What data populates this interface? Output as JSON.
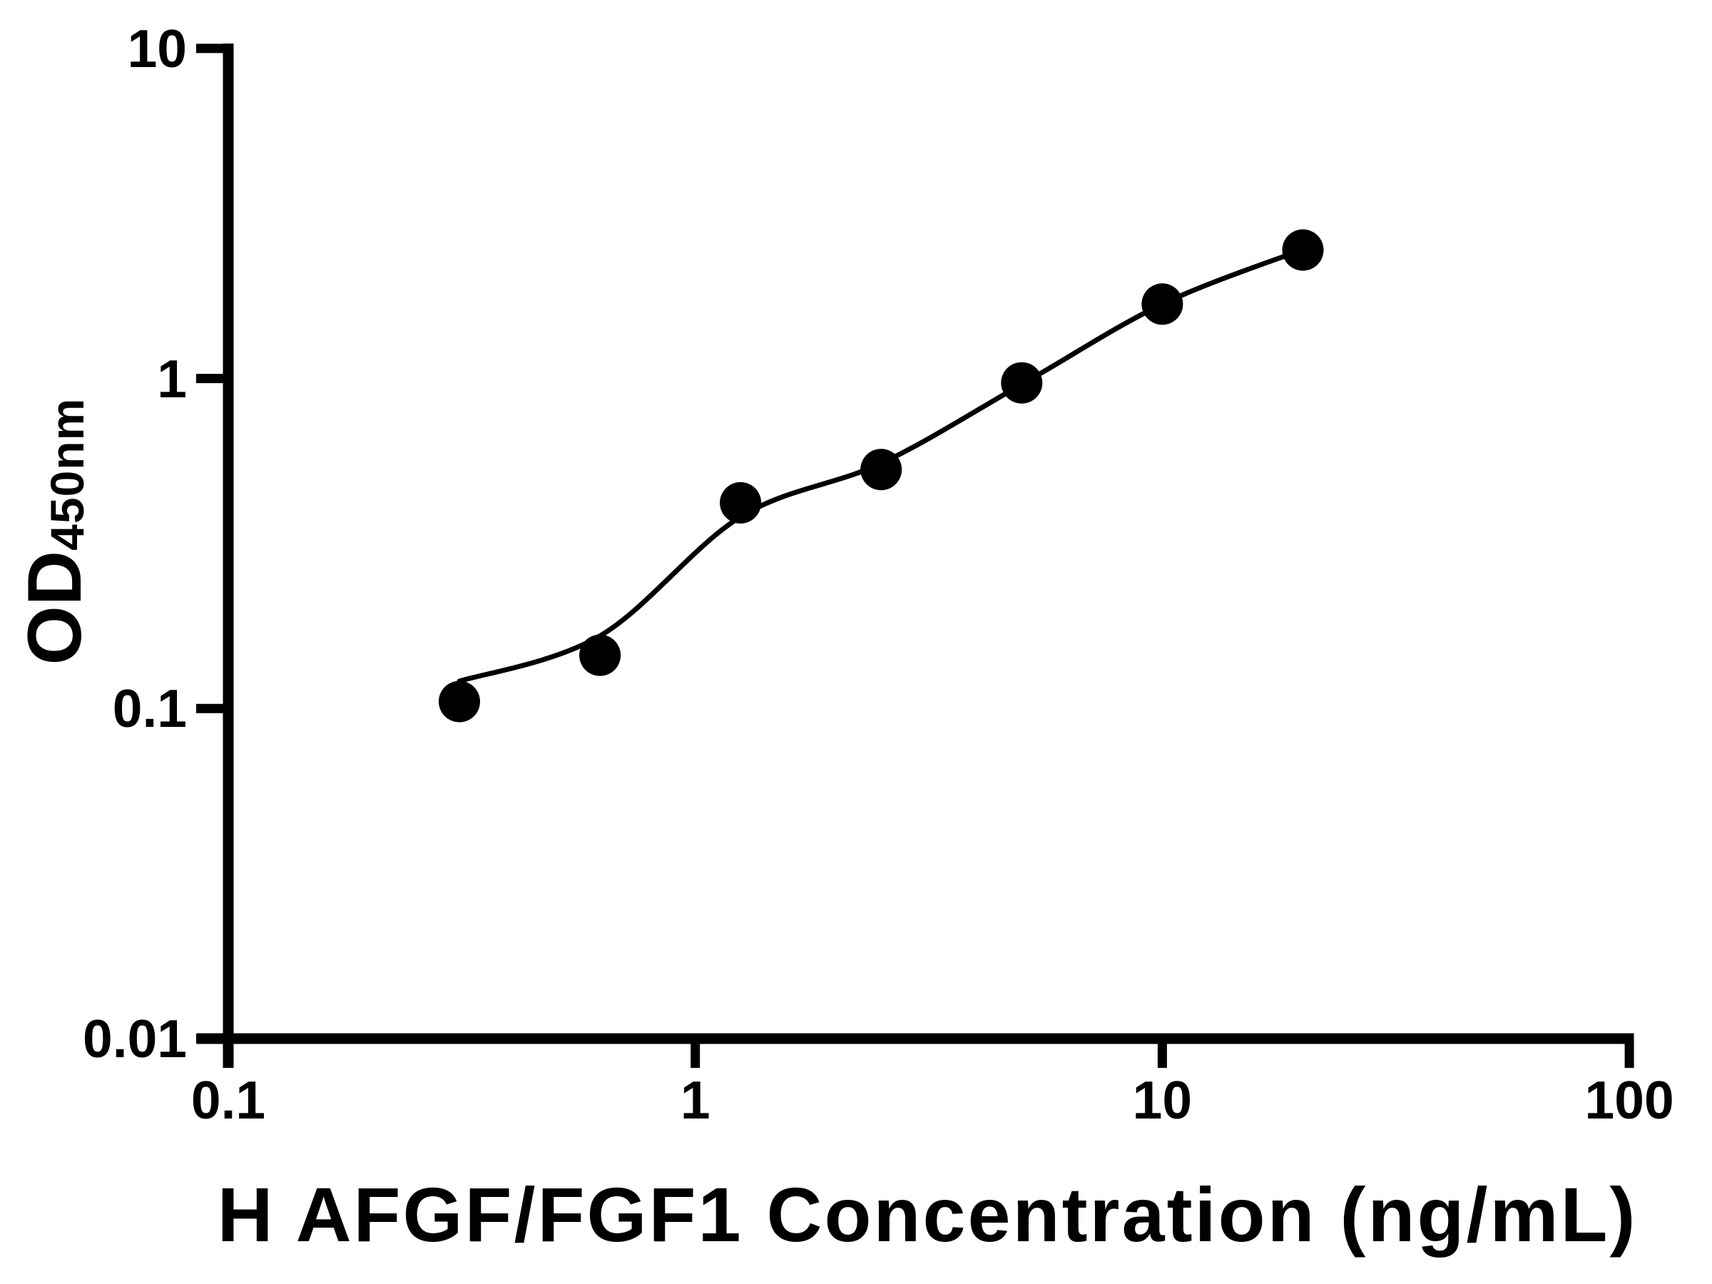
{
  "chart_data": {
    "type": "scatter",
    "title": "",
    "xlabel": "H AFGF/FGF1 Concentration (ng/mL)",
    "ylabel": "OD450nm",
    "ylabel_main": "OD",
    "ylabel_sub": "450nm",
    "x_scale": "log",
    "y_scale": "log",
    "xlim": [
      0.1,
      100
    ],
    "ylim": [
      0.01,
      10
    ],
    "x_ticks": [
      0.1,
      1,
      10,
      100
    ],
    "x_tick_labels": [
      "0.1",
      "1",
      "10",
      "100"
    ],
    "y_ticks": [
      10,
      1,
      0.1,
      0.01
    ],
    "y_tick_labels": [
      "10",
      "1",
      "0.1",
      "0.01"
    ],
    "grid": false,
    "legend": null,
    "series": [
      {
        "name": "standard-curve-points",
        "marker": "filled-circle",
        "color": "#000000",
        "x": [
          0.3125,
          0.625,
          1.25,
          2.5,
          5,
          10,
          20
        ],
        "y": [
          0.105,
          0.145,
          0.42,
          0.53,
          0.97,
          1.68,
          2.45
        ]
      }
    ],
    "fit_curve": {
      "name": "fitted-curve",
      "color": "#000000",
      "x": [
        0.3125,
        0.625,
        1.25,
        2.5,
        5,
        10,
        20
      ],
      "y": [
        0.121,
        0.166,
        0.381,
        0.553,
        0.96,
        1.68,
        2.46
      ]
    },
    "colors": {
      "axis": "#000000",
      "marker": "#000000",
      "curve": "#000000",
      "background": "#ffffff"
    }
  }
}
